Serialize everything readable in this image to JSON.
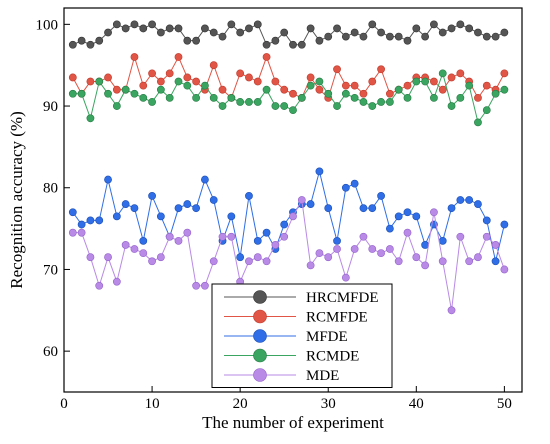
{
  "chart_data": {
    "type": "line",
    "title": "",
    "xlabel": "The number of experiment",
    "ylabel": "Recognition accuracy (%)",
    "xlim": [
      0,
      52
    ],
    "ylim": [
      55,
      102
    ],
    "xticks": [
      0,
      10,
      20,
      30,
      40,
      50
    ],
    "yticks": [
      60,
      70,
      80,
      90,
      100
    ],
    "grid": false,
    "legend_position": "bottom-center",
    "x": [
      1,
      2,
      3,
      4,
      5,
      6,
      7,
      8,
      9,
      10,
      11,
      12,
      13,
      14,
      15,
      16,
      17,
      18,
      19,
      20,
      21,
      22,
      23,
      24,
      25,
      26,
      27,
      28,
      29,
      30,
      31,
      32,
      33,
      34,
      35,
      36,
      37,
      38,
      39,
      40,
      41,
      42,
      43,
      44,
      45,
      46,
      47,
      48,
      49,
      50
    ],
    "series": [
      {
        "name": "HRCMFDE",
        "color": "#555555",
        "edge": "#333333",
        "values": [
          97.5,
          98,
          97.5,
          98,
          99,
          100,
          99.5,
          100,
          99.5,
          100,
          99,
          99.5,
          99.5,
          98,
          98,
          99.5,
          99,
          98.5,
          100,
          99,
          99.5,
          100,
          97.5,
          98,
          99,
          97.5,
          97.5,
          99.5,
          98,
          98.5,
          99.5,
          98.5,
          99,
          98.5,
          100,
          99,
          98.5,
          98.5,
          98,
          99.5,
          98.5,
          100,
          99,
          99.5,
          100,
          99.5,
          99,
          98.5,
          98.5,
          99
        ]
      },
      {
        "name": "RCMFDE",
        "color": "#e05545",
        "edge": "#c03a2c",
        "values": [
          93.5,
          91.5,
          93,
          93,
          93.5,
          92,
          92,
          96,
          92.5,
          94,
          93,
          94,
          96,
          93.5,
          93,
          92,
          95,
          92,
          91,
          94,
          93.5,
          93,
          96,
          93,
          92,
          91.5,
          91,
          93.5,
          92,
          91,
          94.5,
          92.5,
          92.5,
          91.5,
          93,
          94.5,
          91.5,
          92,
          92.5,
          93.5,
          93.5,
          93,
          92,
          93.5,
          94,
          93,
          91,
          92.5,
          92,
          94
        ]
      },
      {
        "name": "MFDE",
        "color": "#2f6ee6",
        "edge": "#1d4fb5",
        "values": [
          77,
          75.5,
          76,
          76,
          81,
          76.5,
          78,
          77.5,
          73.5,
          79,
          76.5,
          74,
          77.5,
          78,
          77.5,
          81,
          78.5,
          73.5,
          76.5,
          71.5,
          79,
          73.5,
          74.5,
          72.5,
          75.5,
          77,
          78,
          78,
          82,
          77.5,
          73.5,
          80,
          80.5,
          77.5,
          77.5,
          79,
          75,
          76.5,
          77,
          76.5,
          73,
          75.5,
          73.5,
          77.5,
          78.5,
          78.5,
          78,
          76,
          71,
          75.5
        ]
      },
      {
        "name": "RCMDE",
        "color": "#3aa560",
        "edge": "#267a44",
        "values": [
          91.5,
          91.5,
          88.5,
          93,
          91.5,
          90,
          92,
          91.5,
          91,
          90.5,
          92,
          91,
          93,
          92.5,
          91,
          92.5,
          91,
          90,
          91,
          90.5,
          90.5,
          90.5,
          92,
          90,
          90,
          89.5,
          91,
          92.5,
          93,
          91.5,
          90,
          91.5,
          91,
          90.5,
          90,
          90.5,
          90.5,
          92,
          91,
          93,
          93,
          91,
          94,
          90,
          91,
          92.5,
          88,
          89.5,
          91.5,
          92
        ]
      },
      {
        "name": "MDE",
        "color": "#b98ae6",
        "edge": "#9463cc",
        "values": [
          74.5,
          74.5,
          71.5,
          68,
          71.5,
          68.5,
          73,
          72.5,
          72,
          71,
          71.5,
          74,
          73.5,
          74.5,
          68,
          68,
          71,
          74,
          74,
          68.5,
          71,
          71.5,
          71,
          73,
          74,
          76.5,
          78.5,
          70.5,
          72,
          71.5,
          72.5,
          69,
          72.5,
          74,
          72.5,
          72,
          72.5,
          71,
          74.5,
          71.5,
          70.5,
          77,
          71,
          65,
          74,
          71,
          71.5,
          74,
          73,
          70
        ]
      }
    ]
  }
}
